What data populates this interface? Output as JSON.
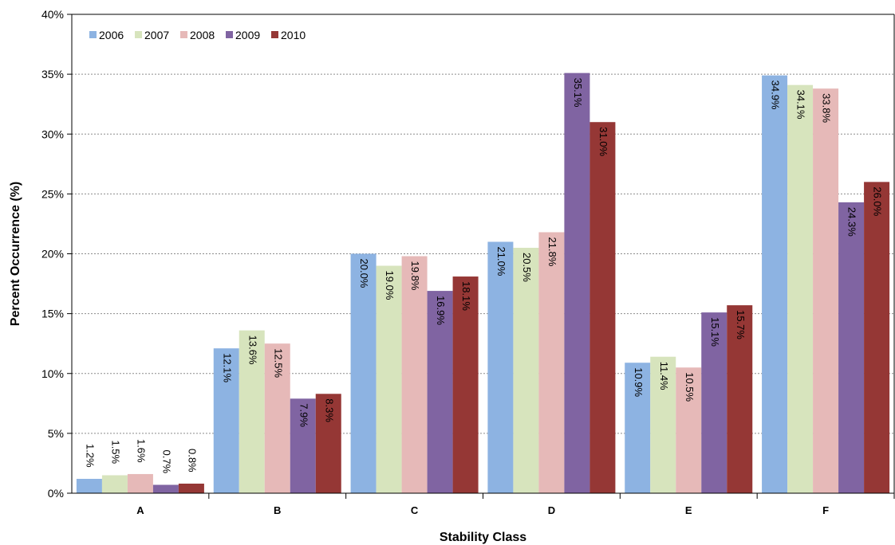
{
  "chart_data": {
    "type": "bar",
    "title": "",
    "xlabel": "Stability Class",
    "ylabel": "Percent Occurrence (%)",
    "ylim": [
      0,
      40
    ],
    "y_ticks": [
      "0%",
      "5%",
      "10%",
      "15%",
      "20%",
      "25%",
      "30%",
      "35%",
      "40%"
    ],
    "categories": [
      "A",
      "B",
      "C",
      "D",
      "E",
      "F"
    ],
    "grid": "horizontal dashed",
    "legend_position": "top-left",
    "series": [
      {
        "name": "2006",
        "color": "#8DB3E2",
        "values": [
          1.2,
          12.1,
          20.0,
          21.0,
          10.9,
          34.9
        ],
        "labels": [
          "1.2%",
          "12.1%",
          "20.0%",
          "21.0%",
          "10.9%",
          "34.9%"
        ]
      },
      {
        "name": "2007",
        "color": "#D7E4BD",
        "values": [
          1.5,
          13.6,
          19.0,
          20.5,
          11.4,
          34.1
        ],
        "labels": [
          "1.5%",
          "13.6%",
          "19.0%",
          "20.5%",
          "11.4%",
          "34.1%"
        ]
      },
      {
        "name": "2008",
        "color": "#E6B9B8",
        "values": [
          1.6,
          12.5,
          19.8,
          21.8,
          10.5,
          33.8
        ],
        "labels": [
          "1.6%",
          "12.5%",
          "19.8%",
          "21.8%",
          "10.5%",
          "33.8%"
        ]
      },
      {
        "name": "2009",
        "color": "#8064A2",
        "values": [
          0.7,
          7.9,
          16.9,
          35.1,
          15.1,
          24.3
        ],
        "labels": [
          "0.7%",
          "7.9%",
          "16.9%",
          "35.1%",
          "15.1%",
          "24.3%"
        ]
      },
      {
        "name": "2010",
        "color": "#953735",
        "values": [
          0.8,
          8.3,
          18.1,
          31.0,
          15.7,
          26.0
        ],
        "labels": [
          "0.8%",
          "8.3%",
          "18.1%",
          "31.0%",
          "15.7%",
          "26.0%"
        ]
      }
    ]
  }
}
